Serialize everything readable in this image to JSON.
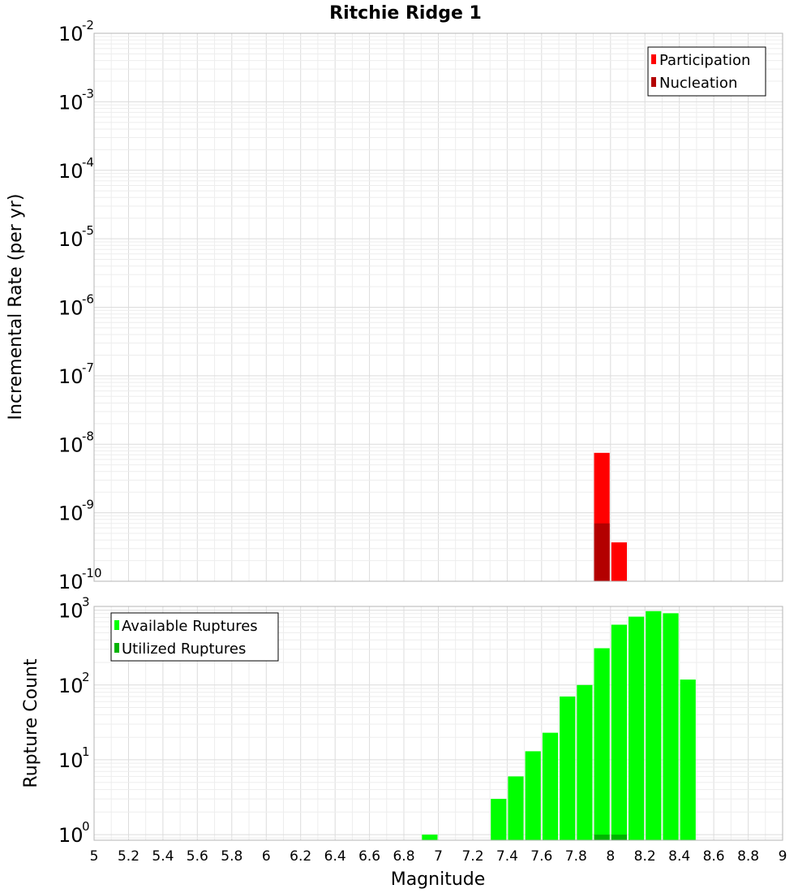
{
  "chart_data": [
    {
      "type": "bar",
      "title": "Ritchie Ridge 1",
      "xlabel": "",
      "ylabel": "Incremental Rate (per yr)",
      "yscale": "log",
      "xlim": [
        5,
        9
      ],
      "ylim_exponents": [
        -10,
        -2
      ],
      "y_tick_base": "10",
      "y_tick_exponents": [
        "-10",
        "-9",
        "-8",
        "-7",
        "-6",
        "-5",
        "-4",
        "-3",
        "-2"
      ],
      "legend_position": "top-right",
      "bar_width": 0.1,
      "series": [
        {
          "name": "Participation",
          "color": "#ff0000",
          "points": [
            {
              "x": 7.95,
              "y": 7.5e-09
            },
            {
              "x": 8.05,
              "y": 3.7e-10
            }
          ]
        },
        {
          "name": "Nucleation",
          "color": "#b30000",
          "points": [
            {
              "x": 7.95,
              "y": 7e-10
            }
          ]
        }
      ]
    },
    {
      "type": "bar",
      "xlabel": "Magnitude",
      "ylabel": "Rupture Count",
      "yscale": "log",
      "xlim": [
        5,
        9
      ],
      "ylim_exponents": [
        -0.075,
        3.05
      ],
      "y_tick_base": "10",
      "y_tick_exponents": [
        "0",
        "1",
        "2",
        "3"
      ],
      "x_ticks": [
        "5",
        "5.2",
        "5.4",
        "5.6",
        "5.8",
        "6",
        "6.2",
        "6.4",
        "6.6",
        "6.8",
        "7",
        "7.2",
        "7.4",
        "7.6",
        "7.8",
        "8",
        "8.2",
        "8.4",
        "8.6",
        "8.8",
        "9"
      ],
      "legend_position": "top-left",
      "bar_width": 0.1,
      "series": [
        {
          "name": "Available Ruptures",
          "color": "#00ff00",
          "points": [
            {
              "x": 6.95,
              "y": 1
            },
            {
              "x": 7.35,
              "y": 3
            },
            {
              "x": 7.45,
              "y": 6
            },
            {
              "x": 7.55,
              "y": 13
            },
            {
              "x": 7.65,
              "y": 23
            },
            {
              "x": 7.75,
              "y": 70
            },
            {
              "x": 7.85,
              "y": 100
            },
            {
              "x": 7.95,
              "y": 310
            },
            {
              "x": 8.05,
              "y": 640
            },
            {
              "x": 8.15,
              "y": 820
            },
            {
              "x": 8.25,
              "y": 970
            },
            {
              "x": 8.35,
              "y": 910
            },
            {
              "x": 8.45,
              "y": 118
            }
          ]
        },
        {
          "name": "Utilized Ruptures",
          "color": "#00b300",
          "points": [
            {
              "x": 7.95,
              "y": 1
            },
            {
              "x": 8.05,
              "y": 1
            }
          ]
        }
      ]
    }
  ]
}
